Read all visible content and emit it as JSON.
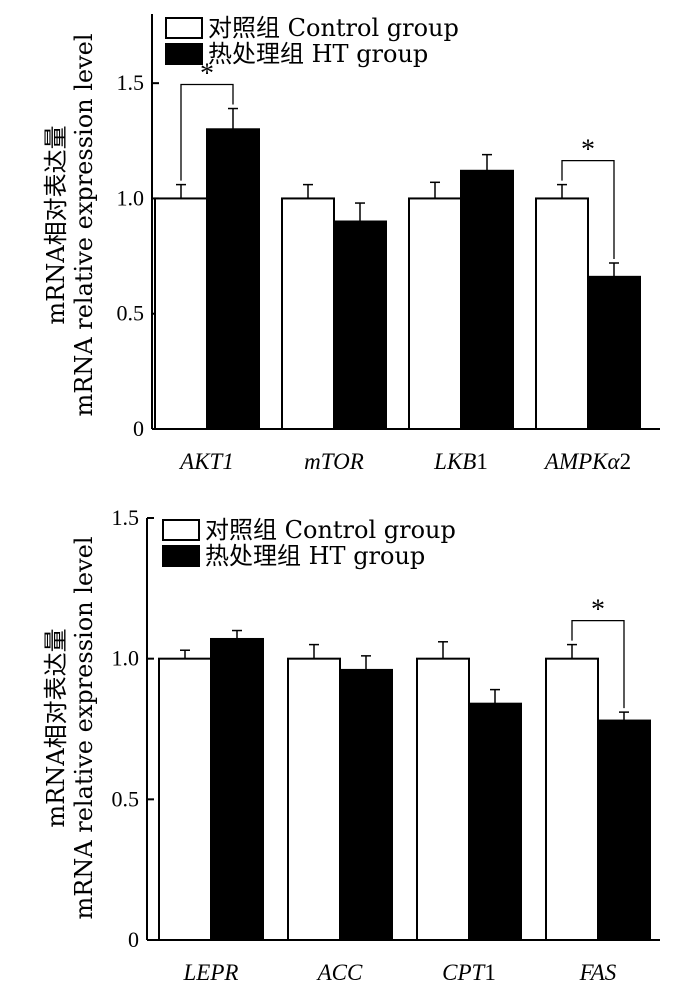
{
  "chart_data": [
    {
      "type": "bar",
      "title": "",
      "ylabel_lines": [
        "mRNA相对表达量",
        "mRNA relative expression level"
      ],
      "xlabel": "",
      "ylim": [
        0,
        1.8
      ],
      "yticks": [
        {
          "value": 0,
          "label": "0"
        },
        {
          "value": 0.5,
          "label": "0.5"
        },
        {
          "value": 1.0,
          "label": "1.0"
        },
        {
          "value": 1.5,
          "label": "1.5"
        }
      ],
      "categories": [
        {
          "name": "AKT1",
          "suffix": ""
        },
        {
          "name": "mTOR",
          "suffix": ""
        },
        {
          "name": "LKB",
          "suffix": "1"
        },
        {
          "name": "AMPKα",
          "suffix": "2"
        }
      ],
      "series": [
        {
          "name": "对照组 Control group",
          "color": "#ffffff",
          "values": [
            1.0,
            1.0,
            1.0,
            1.0
          ],
          "errors": [
            0.06,
            0.06,
            0.07,
            0.06
          ]
        },
        {
          "name": "热处理组 HT group",
          "color": "#000000",
          "values": [
            1.3,
            0.9,
            1.12,
            0.66
          ],
          "errors": [
            0.09,
            0.08,
            0.07,
            0.06
          ]
        }
      ],
      "significance": [
        {
          "category": 0,
          "label": "*"
        },
        {
          "category": 3,
          "label": "*"
        }
      ],
      "legend_position": "top-left",
      "grid": false
    },
    {
      "type": "bar",
      "title": "",
      "ylabel_lines": [
        "mRNA相对表达量",
        "mRNA relative expression level"
      ],
      "xlabel": "",
      "ylim": [
        0,
        1.5
      ],
      "yticks": [
        {
          "value": 0,
          "label": "0"
        },
        {
          "value": 0.5,
          "label": "0.5"
        },
        {
          "value": 1.0,
          "label": "1.0"
        },
        {
          "value": 1.5,
          "label": "1.5"
        }
      ],
      "categories": [
        {
          "name": "LEPR",
          "suffix": ""
        },
        {
          "name": "ACC",
          "suffix": ""
        },
        {
          "name": "CPT",
          "suffix": "1"
        },
        {
          "name": "FAS",
          "suffix": ""
        }
      ],
      "series": [
        {
          "name": "对照组 Control group",
          "color": "#ffffff",
          "values": [
            1.0,
            1.0,
            1.0,
            1.0
          ],
          "errors": [
            0.03,
            0.05,
            0.06,
            0.05
          ]
        },
        {
          "name": "热处理组 HT group",
          "color": "#000000",
          "values": [
            1.07,
            0.96,
            0.84,
            0.78
          ],
          "errors": [
            0.03,
            0.05,
            0.05,
            0.03
          ]
        }
      ],
      "significance": [
        {
          "category": 3,
          "label": "*"
        }
      ],
      "legend_position": "top-left",
      "grid": false
    }
  ]
}
